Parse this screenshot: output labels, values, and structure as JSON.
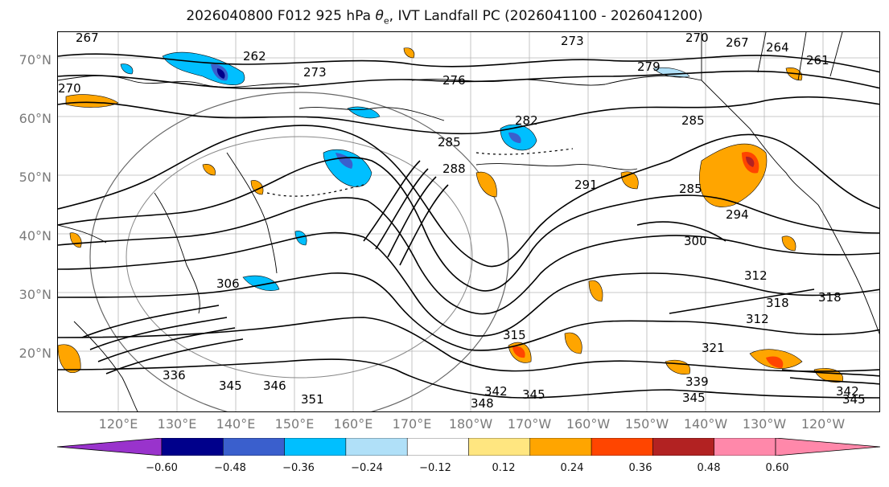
{
  "title_main": "2026040800 F012 925 hPa ",
  "title_theta": "θ",
  "title_sub": "e",
  "title_tail": ", IVT Landfall PC (2026041100 - 2026041200)",
  "lat_labels": [
    "70°N",
    "60°N",
    "50°N",
    "40°N",
    "30°N",
    "20°N"
  ],
  "lon_labels": [
    "120°E",
    "130°E",
    "140°E",
    "150°E",
    "160°E",
    "170°E",
    "180°W",
    "170°W",
    "160°W",
    "150°W",
    "140°W",
    "130°W",
    "120°W"
  ],
  "contour_labels": [
    "267",
    "262",
    "273",
    "276",
    "273",
    "279",
    "270",
    "267",
    "264",
    "261",
    "270",
    "282",
    "285",
    "285",
    "288",
    "291",
    "285",
    "294",
    "300",
    "306",
    "312",
    "318",
    "318",
    "315",
    "312",
    "321",
    "336",
    "345",
    "346",
    "351",
    "348",
    "345",
    "339",
    "345",
    "342",
    "342",
    "345"
  ],
  "colorbar": {
    "ticks": [
      "−0.60",
      "−0.48",
      "−0.36",
      "−0.24",
      "−0.12",
      "0.12",
      "0.24",
      "0.36",
      "0.48",
      "0.60"
    ],
    "colors": [
      "#9933cc",
      "#00008b",
      "#3a5fcd",
      "#00bfff",
      "#b0e0f8",
      "#ffffff",
      "#ffe680",
      "#ffa500",
      "#ff4500",
      "#b22222",
      "#ff88aa",
      "#ff88aa"
    ]
  }
}
